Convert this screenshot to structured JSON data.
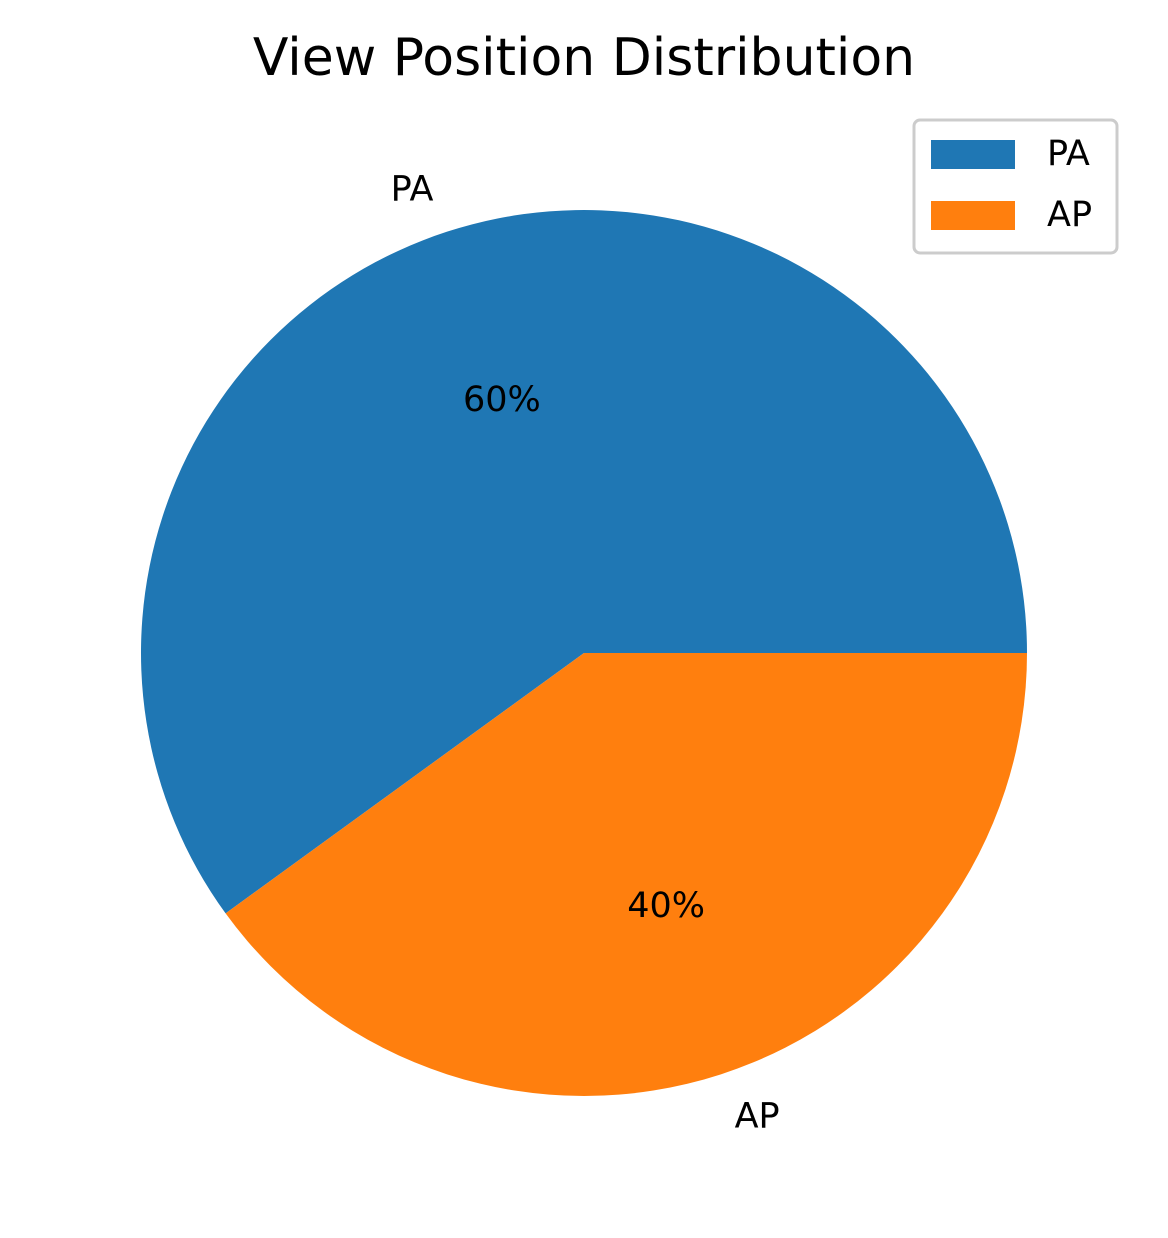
{
  "chart_data": {
    "type": "pie",
    "title": "View Position Distribution",
    "labels": [
      "PA",
      "AP"
    ],
    "values": [
      60,
      40
    ],
    "percent_labels": [
      "60%",
      "40%"
    ],
    "colors": [
      "#1f77b4",
      "#ff7f0e"
    ],
    "legend": {
      "placement": "top-right",
      "entries": [
        "PA",
        "AP"
      ]
    },
    "start_angle_deg": 0,
    "direction": "counterclockwise"
  }
}
